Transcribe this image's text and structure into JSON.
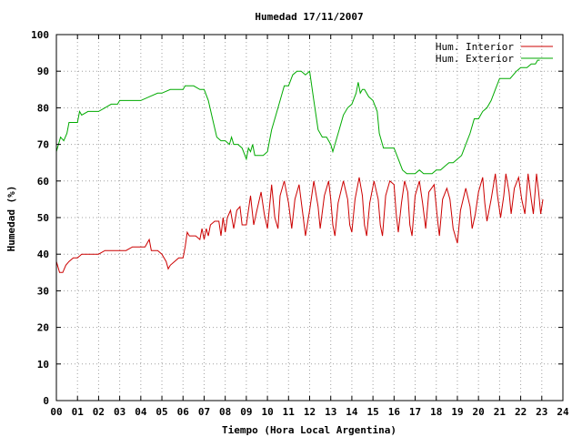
{
  "chart_data": {
    "type": "line",
    "title": "Humedad 17/11/2007",
    "xlabel": "Tiempo (Hora Local Argentina)",
    "ylabel": "Humedad (%)",
    "xlim": [
      0,
      24
    ],
    "ylim": [
      0,
      100
    ],
    "grid": true,
    "legend_placement": "top-right",
    "x_ticks": [
      "00",
      "01",
      "02",
      "03",
      "04",
      "05",
      "06",
      "07",
      "08",
      "09",
      "10",
      "11",
      "12",
      "13",
      "14",
      "15",
      "16",
      "17",
      "18",
      "19",
      "20",
      "21",
      "22",
      "23",
      "24"
    ],
    "y_ticks": [
      "0",
      "10",
      "20",
      "30",
      "40",
      "50",
      "60",
      "70",
      "80",
      "90",
      "100"
    ],
    "series": [
      {
        "name": "Hum. Interior",
        "color": "#cc0000",
        "points": [
          [
            0.0,
            38
          ],
          [
            0.15,
            35
          ],
          [
            0.3,
            35
          ],
          [
            0.45,
            37
          ],
          [
            0.6,
            38
          ],
          [
            0.8,
            39
          ],
          [
            1.0,
            39
          ],
          [
            1.2,
            40
          ],
          [
            1.5,
            40
          ],
          [
            1.8,
            40
          ],
          [
            2.0,
            40
          ],
          [
            2.3,
            41
          ],
          [
            2.6,
            41
          ],
          [
            3.0,
            41
          ],
          [
            3.3,
            41
          ],
          [
            3.6,
            42
          ],
          [
            4.0,
            42
          ],
          [
            4.2,
            42
          ],
          [
            4.4,
            44
          ],
          [
            4.5,
            41
          ],
          [
            4.6,
            41
          ],
          [
            4.8,
            41
          ],
          [
            5.0,
            40
          ],
          [
            5.2,
            38
          ],
          [
            5.3,
            36
          ],
          [
            5.4,
            37
          ],
          [
            5.6,
            38
          ],
          [
            5.8,
            39
          ],
          [
            6.0,
            39
          ],
          [
            6.1,
            42
          ],
          [
            6.2,
            46
          ],
          [
            6.3,
            45
          ],
          [
            6.5,
            45
          ],
          [
            6.6,
            45
          ],
          [
            6.8,
            44
          ],
          [
            6.9,
            47
          ],
          [
            7.0,
            44
          ],
          [
            7.1,
            47
          ],
          [
            7.2,
            45
          ],
          [
            7.3,
            48
          ],
          [
            7.5,
            49
          ],
          [
            7.7,
            49
          ],
          [
            7.8,
            45
          ],
          [
            7.9,
            50
          ],
          [
            8.0,
            46
          ],
          [
            8.1,
            50
          ],
          [
            8.25,
            52
          ],
          [
            8.4,
            47
          ],
          [
            8.55,
            52
          ],
          [
            8.7,
            53
          ],
          [
            8.8,
            48
          ],
          [
            9.0,
            48
          ],
          [
            9.2,
            56
          ],
          [
            9.35,
            48
          ],
          [
            9.5,
            52
          ],
          [
            9.7,
            57
          ],
          [
            9.85,
            51
          ],
          [
            10.0,
            47
          ],
          [
            10.2,
            59
          ],
          [
            10.35,
            50
          ],
          [
            10.5,
            47
          ],
          [
            10.6,
            56
          ],
          [
            10.8,
            60
          ],
          [
            11.0,
            54
          ],
          [
            11.15,
            47
          ],
          [
            11.3,
            55
          ],
          [
            11.5,
            59
          ],
          [
            11.7,
            50
          ],
          [
            11.8,
            45
          ],
          [
            12.0,
            52
          ],
          [
            12.2,
            60
          ],
          [
            12.4,
            53
          ],
          [
            12.5,
            47
          ],
          [
            12.7,
            56
          ],
          [
            12.9,
            60
          ],
          [
            13.0,
            55
          ],
          [
            13.1,
            48
          ],
          [
            13.2,
            45
          ],
          [
            13.35,
            54
          ],
          [
            13.6,
            60
          ],
          [
            13.8,
            55
          ],
          [
            13.9,
            48
          ],
          [
            14.0,
            46
          ],
          [
            14.15,
            55
          ],
          [
            14.35,
            61
          ],
          [
            14.5,
            56
          ],
          [
            14.6,
            48
          ],
          [
            14.7,
            45
          ],
          [
            14.85,
            54
          ],
          [
            15.05,
            60
          ],
          [
            15.25,
            55
          ],
          [
            15.35,
            48
          ],
          [
            15.45,
            45
          ],
          [
            15.6,
            56
          ],
          [
            15.8,
            60
          ],
          [
            16.0,
            59
          ],
          [
            16.1,
            51
          ],
          [
            16.2,
            46
          ],
          [
            16.35,
            54
          ],
          [
            16.5,
            60
          ],
          [
            16.65,
            57
          ],
          [
            16.75,
            48
          ],
          [
            16.85,
            45
          ],
          [
            17.0,
            56
          ],
          [
            17.2,
            60
          ],
          [
            17.35,
            54
          ],
          [
            17.5,
            47
          ],
          [
            17.65,
            57
          ],
          [
            17.9,
            59
          ],
          [
            18.05,
            50
          ],
          [
            18.15,
            45
          ],
          [
            18.3,
            55
          ],
          [
            18.5,
            58
          ],
          [
            18.65,
            55
          ],
          [
            18.8,
            47
          ],
          [
            18.9,
            45
          ],
          [
            19.0,
            43
          ],
          [
            19.15,
            52
          ],
          [
            19.4,
            58
          ],
          [
            19.6,
            53
          ],
          [
            19.7,
            47
          ],
          [
            19.85,
            51
          ],
          [
            20.0,
            57
          ],
          [
            20.2,
            61
          ],
          [
            20.3,
            54
          ],
          [
            20.4,
            49
          ],
          [
            20.6,
            55
          ],
          [
            20.8,
            62
          ],
          [
            20.9,
            56
          ],
          [
            21.05,
            50
          ],
          [
            21.2,
            56
          ],
          [
            21.3,
            62
          ],
          [
            21.45,
            57
          ],
          [
            21.55,
            51
          ],
          [
            21.7,
            58
          ],
          [
            21.9,
            61
          ],
          [
            22.05,
            55
          ],
          [
            22.2,
            51
          ],
          [
            22.35,
            62
          ],
          [
            22.5,
            55
          ],
          [
            22.6,
            51
          ],
          [
            22.75,
            62
          ],
          [
            22.85,
            57
          ],
          [
            22.95,
            51
          ],
          [
            23.05,
            55
          ]
        ]
      },
      {
        "name": "Hum. Exterior",
        "color": "#00aa00",
        "points": [
          [
            0.0,
            68
          ],
          [
            0.1,
            70
          ],
          [
            0.2,
            72
          ],
          [
            0.35,
            71
          ],
          [
            0.5,
            73
          ],
          [
            0.6,
            76
          ],
          [
            0.8,
            76
          ],
          [
            1.0,
            76
          ],
          [
            1.1,
            79
          ],
          [
            1.2,
            78
          ],
          [
            1.5,
            79
          ],
          [
            1.8,
            79
          ],
          [
            2.0,
            79
          ],
          [
            2.3,
            80
          ],
          [
            2.6,
            81
          ],
          [
            2.9,
            81
          ],
          [
            3.0,
            82
          ],
          [
            3.4,
            82
          ],
          [
            3.8,
            82
          ],
          [
            4.0,
            82
          ],
          [
            4.4,
            83
          ],
          [
            4.8,
            84
          ],
          [
            5.0,
            84
          ],
          [
            5.4,
            85
          ],
          [
            5.8,
            85
          ],
          [
            6.0,
            85
          ],
          [
            6.1,
            86
          ],
          [
            6.5,
            86
          ],
          [
            6.8,
            85
          ],
          [
            7.0,
            85
          ],
          [
            7.2,
            82
          ],
          [
            7.4,
            77
          ],
          [
            7.6,
            72
          ],
          [
            7.8,
            71
          ],
          [
            8.0,
            71
          ],
          [
            8.2,
            70
          ],
          [
            8.3,
            72
          ],
          [
            8.4,
            70
          ],
          [
            8.6,
            70
          ],
          [
            8.8,
            69
          ],
          [
            9.0,
            66
          ],
          [
            9.1,
            69
          ],
          [
            9.2,
            68
          ],
          [
            9.3,
            70
          ],
          [
            9.4,
            67
          ],
          [
            9.6,
            67
          ],
          [
            9.8,
            67
          ],
          [
            10.0,
            68
          ],
          [
            10.2,
            74
          ],
          [
            10.4,
            78
          ],
          [
            10.6,
            82
          ],
          [
            10.8,
            86
          ],
          [
            11.0,
            86
          ],
          [
            11.2,
            89
          ],
          [
            11.4,
            90
          ],
          [
            11.6,
            90
          ],
          [
            11.8,
            89
          ],
          [
            12.0,
            90
          ],
          [
            12.2,
            82
          ],
          [
            12.4,
            74
          ],
          [
            12.6,
            72
          ],
          [
            12.8,
            72
          ],
          [
            13.0,
            70
          ],
          [
            13.1,
            68
          ],
          [
            13.2,
            70
          ],
          [
            13.4,
            74
          ],
          [
            13.6,
            78
          ],
          [
            13.8,
            80
          ],
          [
            14.0,
            81
          ],
          [
            14.2,
            84
          ],
          [
            14.3,
            87
          ],
          [
            14.4,
            84
          ],
          [
            14.5,
            85
          ],
          [
            14.6,
            85
          ],
          [
            14.8,
            83
          ],
          [
            15.0,
            82
          ],
          [
            15.2,
            79
          ],
          [
            15.3,
            73
          ],
          [
            15.5,
            69
          ],
          [
            15.8,
            69
          ],
          [
            16.0,
            69
          ],
          [
            16.2,
            66
          ],
          [
            16.4,
            63
          ],
          [
            16.6,
            62
          ],
          [
            16.8,
            62
          ],
          [
            17.0,
            62
          ],
          [
            17.2,
            63
          ],
          [
            17.4,
            62
          ],
          [
            17.6,
            62
          ],
          [
            17.8,
            62
          ],
          [
            18.0,
            63
          ],
          [
            18.2,
            63
          ],
          [
            18.4,
            64
          ],
          [
            18.6,
            65
          ],
          [
            18.8,
            65
          ],
          [
            19.0,
            66
          ],
          [
            19.2,
            67
          ],
          [
            19.4,
            70
          ],
          [
            19.6,
            73
          ],
          [
            19.8,
            77
          ],
          [
            20.0,
            77
          ],
          [
            20.2,
            79
          ],
          [
            20.4,
            80
          ],
          [
            20.6,
            82
          ],
          [
            20.8,
            85
          ],
          [
            21.0,
            88
          ],
          [
            21.2,
            88
          ],
          [
            21.5,
            88
          ],
          [
            21.8,
            90
          ],
          [
            22.0,
            91
          ],
          [
            22.3,
            91
          ],
          [
            22.5,
            92
          ],
          [
            22.7,
            92
          ],
          [
            22.8,
            93
          ],
          [
            22.9,
            93
          ]
        ]
      }
    ]
  }
}
